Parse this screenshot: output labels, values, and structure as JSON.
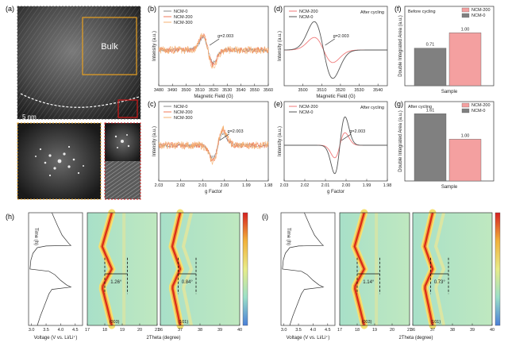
{
  "panels": {
    "a": {
      "label": "(a)",
      "bulk_label": "Bulk",
      "scale_bar": "5 nm"
    },
    "b": {
      "label": "(b)"
    },
    "c": {
      "label": "(c)"
    },
    "d": {
      "label": "(d)"
    },
    "e": {
      "label": "(e)"
    },
    "f": {
      "label": "(f)"
    },
    "g": {
      "label": "(g)"
    },
    "h": {
      "label": "(h)"
    },
    "i": {
      "label": "(i)"
    }
  },
  "chart_data": [
    {
      "id": "b",
      "type": "line",
      "xlabel": "Magnetic Field (G)",
      "ylabel": "Intensity (a.u.)",
      "xlim": [
        3480,
        3560
      ],
      "xticks": [
        "3480",
        "3490",
        "3500",
        "3510",
        "3520",
        "3530",
        "3540",
        "3550",
        "3560"
      ],
      "legend": [
        "NCM-0",
        "NCM-200",
        "NCM-300"
      ],
      "colors": [
        "#8a8a8a",
        "#f07a5a",
        "#f5b070"
      ],
      "annotation": "g=2.003",
      "center": 3516,
      "series": [
        {
          "name": "NCM-0",
          "amp": 0.42
        },
        {
          "name": "NCM-200",
          "amp": 0.5
        },
        {
          "name": "NCM-300",
          "amp": 0.55
        }
      ]
    },
    {
      "id": "c",
      "type": "line",
      "xlabel": "g Factor",
      "ylabel": "Intensity (a.u.)",
      "xlim": [
        2.03,
        1.98
      ],
      "xticks": [
        "2.03",
        "2.02",
        "2.01",
        "2.00",
        "1.99",
        "1.98"
      ],
      "legend": [
        "NCM-0",
        "NCM-200",
        "NCM-300"
      ],
      "colors": [
        "#8a8a8a",
        "#f07a5a",
        "#f5b070"
      ],
      "annotation": "g=2.003",
      "center": 2.003,
      "series": [
        {
          "name": "NCM-0",
          "amp": 0.42
        },
        {
          "name": "NCM-200",
          "amp": 0.5
        },
        {
          "name": "NCM-300",
          "amp": 0.55
        }
      ]
    },
    {
      "id": "d",
      "type": "line",
      "xlabel": "Magnetic Field (G)",
      "ylabel": "Intensity (a.u.)",
      "xlim": [
        3490,
        3545
      ],
      "xticks": [
        "3500",
        "3510",
        "3520",
        "3530",
        "3540"
      ],
      "legend": [
        "NCM-200",
        "NCM-0"
      ],
      "colors": [
        "#f07a7a",
        "#555555"
      ],
      "title": "After cycling",
      "annotation": "g=2.003",
      "center": 3511,
      "series": [
        {
          "name": "NCM-200",
          "amp": 0.42
        },
        {
          "name": "NCM-0",
          "amp": 0.95
        }
      ]
    },
    {
      "id": "e",
      "type": "line",
      "xlabel": "g Factor",
      "ylabel": "Intensity (a.u.)",
      "xlim": [
        2.03,
        1.98
      ],
      "xticks": [
        "2.03",
        "2.02",
        "2.01",
        "2.00",
        "1.99",
        "1.98"
      ],
      "legend": [
        "NCM-200",
        "NCM-0"
      ],
      "colors": [
        "#f07a7a",
        "#555555"
      ],
      "title": "After cycling",
      "annotation": "g=2.003",
      "center": 2.003,
      "series": [
        {
          "name": "NCM-200",
          "amp": 0.42
        },
        {
          "name": "NCM-0",
          "amp": 0.95
        }
      ]
    },
    {
      "id": "f",
      "type": "bar",
      "title": "Before cycling",
      "xlabel": "Sample",
      "ylabel": "Double Integrated Area (a.u.)",
      "categories": [
        "NCM-0",
        "NCM-200"
      ],
      "values": [
        0.71,
        1.0
      ],
      "value_labels": [
        "0.71",
        "1.00"
      ],
      "colors": [
        "#808080",
        "#f4a0a0"
      ],
      "legend": [
        "NCM-200",
        "NCM-0"
      ],
      "ylim": [
        0,
        1.5
      ]
    },
    {
      "id": "g",
      "type": "bar",
      "title": "After cycling",
      "xlabel": "Sample",
      "ylabel": "Double Integrated Area (a.u.)",
      "categories": [
        "NCM-0",
        "NCM-200"
      ],
      "values": [
        1.61,
        1.0
      ],
      "value_labels": [
        "1.61",
        "1.00"
      ],
      "colors": [
        "#808080",
        "#f4a0a0"
      ],
      "legend": [
        "NCM-200",
        "NCM-0"
      ],
      "ylim": [
        0,
        1.9
      ]
    },
    {
      "id": "h",
      "type": "heatmap",
      "voltage_xlabel": "Voltage (V vs. Li/Li⁺)",
      "voltage_xticks": [
        "3.0",
        "3.5",
        "4.0",
        "4.5"
      ],
      "time_label": "Time (h)",
      "theta_xlabel": "2Theta (degree)",
      "theta_xticks_left": [
        "17",
        "18",
        "19",
        "20",
        "21"
      ],
      "theta_xticks_right": [
        "36",
        "37",
        "38",
        "39",
        "40"
      ],
      "peak_labels": [
        "(003)",
        "(101)"
      ],
      "shift_labels": [
        "1.26°",
        "0.84°"
      ]
    },
    {
      "id": "i",
      "type": "heatmap",
      "voltage_xlabel": "Voltage (V vs. Li/Li⁺)",
      "voltage_xticks": [
        "3.0",
        "3.5",
        "4.0",
        "4.5"
      ],
      "time_label": "Time (h)",
      "theta_xlabel": "2Theta (degree)",
      "theta_xticks_left": [
        "17",
        "18",
        "19",
        "20",
        "21"
      ],
      "theta_xticks_right": [
        "36",
        "37",
        "38",
        "39",
        "40"
      ],
      "peak_labels": [
        "(003)",
        "(101)"
      ],
      "shift_labels": [
        "1.14°",
        "0.73°"
      ]
    }
  ]
}
